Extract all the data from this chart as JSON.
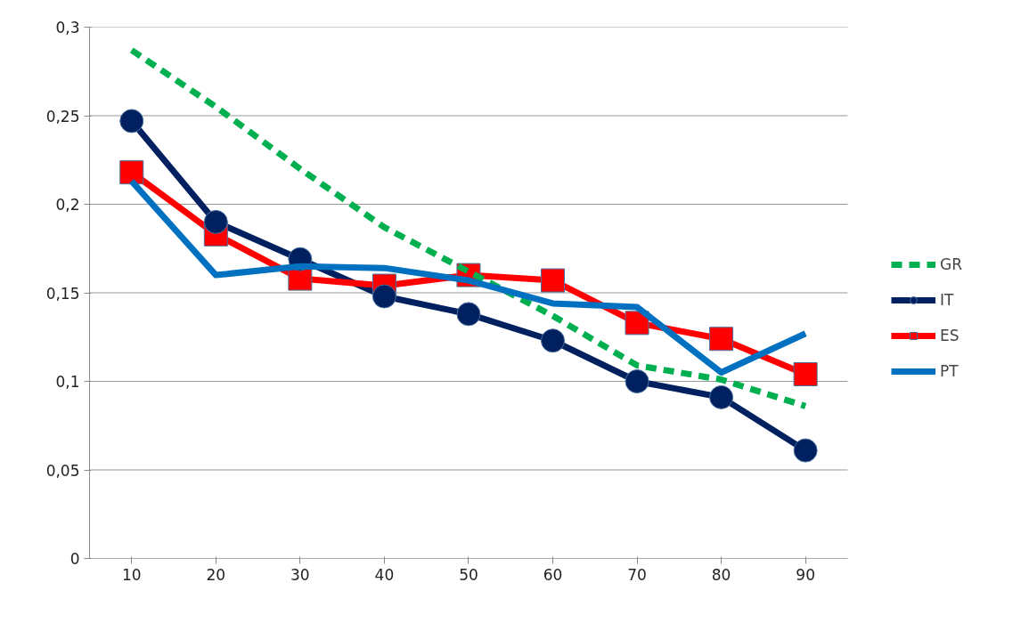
{
  "chart_data": {
    "type": "line",
    "categories": [
      "10",
      "20",
      "30",
      "40",
      "50",
      "60",
      "70",
      "80",
      "90"
    ],
    "series": [
      {
        "name": "GR",
        "color": "#00b050",
        "line_style": "dashed",
        "marker": "none",
        "values": [
          0.287,
          0.255,
          0.22,
          0.187,
          0.162,
          0.137,
          0.109,
          0.101,
          0.086
        ]
      },
      {
        "name": "IT",
        "color": "#002060",
        "line_style": "solid",
        "marker": "circle",
        "values": [
          0.247,
          0.19,
          0.169,
          0.148,
          0.138,
          0.123,
          0.1,
          0.091,
          0.061
        ]
      },
      {
        "name": "ES",
        "color": "#ff0000",
        "line_style": "solid",
        "marker": "square",
        "values": [
          0.218,
          0.183,
          0.158,
          0.154,
          0.16,
          0.157,
          0.133,
          0.124,
          0.104
        ]
      },
      {
        "name": "PT",
        "color": "#0070c0",
        "line_style": "solid",
        "marker": "none",
        "values": [
          0.213,
          0.16,
          0.165,
          0.164,
          0.157,
          0.144,
          0.142,
          0.105,
          0.127
        ]
      }
    ],
    "ylim": [
      0,
      0.3
    ],
    "yticks": [
      {
        "value": 0,
        "label": "0"
      },
      {
        "value": 0.05,
        "label": "0,05"
      },
      {
        "value": 0.1,
        "label": "0,1"
      },
      {
        "value": 0.15,
        "label": "0,15"
      },
      {
        "value": 0.2,
        "label": "0,2"
      },
      {
        "value": 0.25,
        "label": "0,25"
      },
      {
        "value": 0.3,
        "label": "0,3"
      }
    ],
    "grid": "y",
    "legend": "right"
  }
}
